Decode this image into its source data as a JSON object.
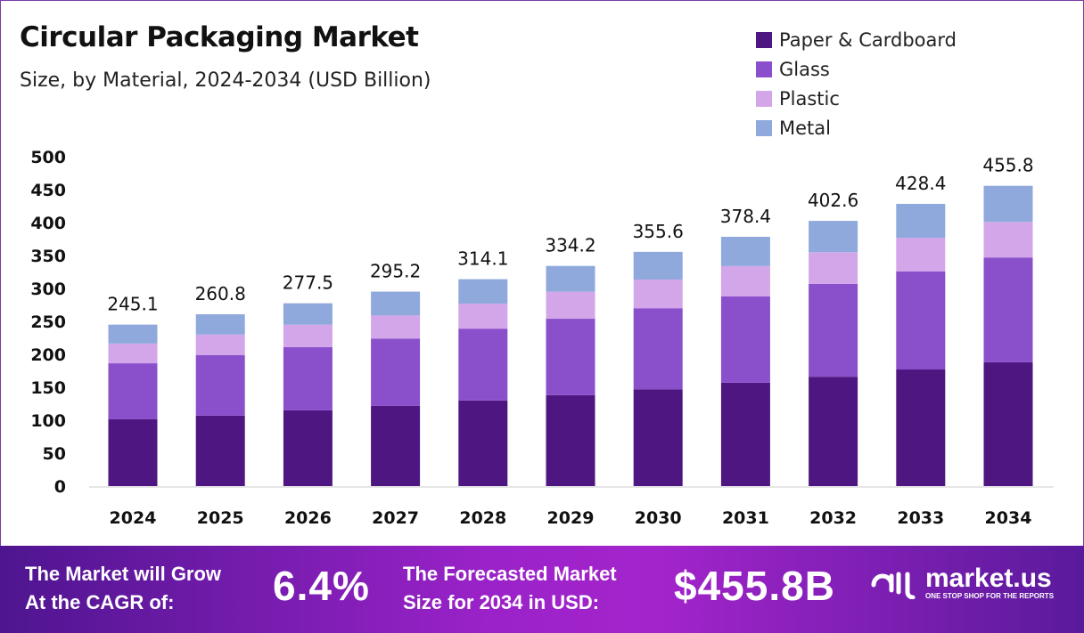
{
  "chart_data": {
    "type": "bar",
    "stacked": true,
    "title": "Circular Packaging Market",
    "subtitle": "Size, by Material, 2024-2034 (USD Billion)",
    "xlabel": "",
    "ylabel": "",
    "ylim": [
      0,
      500
    ],
    "yticks": [
      0,
      50,
      100,
      150,
      200,
      250,
      300,
      350,
      400,
      450,
      500
    ],
    "grid": false,
    "legend_position": "top-right",
    "categories": [
      "2024",
      "2025",
      "2026",
      "2027",
      "2028",
      "2029",
      "2030",
      "2031",
      "2032",
      "2033",
      "2034"
    ],
    "series": [
      {
        "name": "Paper & Cardboard",
        "color": "#4e1681",
        "values": [
          101.4,
          107,
          115,
          122,
          130,
          138,
          147,
          157,
          166,
          177,
          188
        ]
      },
      {
        "name": "Glass",
        "color": "#8a4fcb",
        "values": [
          85,
          92,
          96,
          102,
          109,
          116,
          123,
          131,
          141,
          149,
          159
        ]
      },
      {
        "name": "Plastic",
        "color": "#d3a6ea",
        "values": [
          30,
          31,
          34,
          35,
          38,
          41,
          43.5,
          46,
          48,
          51,
          54
        ]
      },
      {
        "name": "Metal",
        "color": "#8fa9dc",
        "values": [
          28.7,
          30.8,
          32.5,
          36.2,
          37.1,
          39.2,
          42.1,
          44.4,
          47.6,
          51.4,
          54.8
        ]
      }
    ],
    "totals": [
      "245.1",
      "260.8",
      "277.5",
      "295.2",
      "314.1",
      "334.2",
      "355.6",
      "378.4",
      "402.6",
      "428.4",
      "455.8"
    ]
  },
  "footer": {
    "cagr_label_1": "The Market will Grow",
    "cagr_label_2": "At the CAGR of:",
    "cagr_value": "6.4%",
    "forecast_label_1": "The Forecasted Market",
    "forecast_label_2": "Size for 2034 in USD:",
    "forecast_value": "$455.8B",
    "logo_name": "market.us",
    "logo_tagline": "ONE STOP SHOP FOR THE REPORTS"
  }
}
